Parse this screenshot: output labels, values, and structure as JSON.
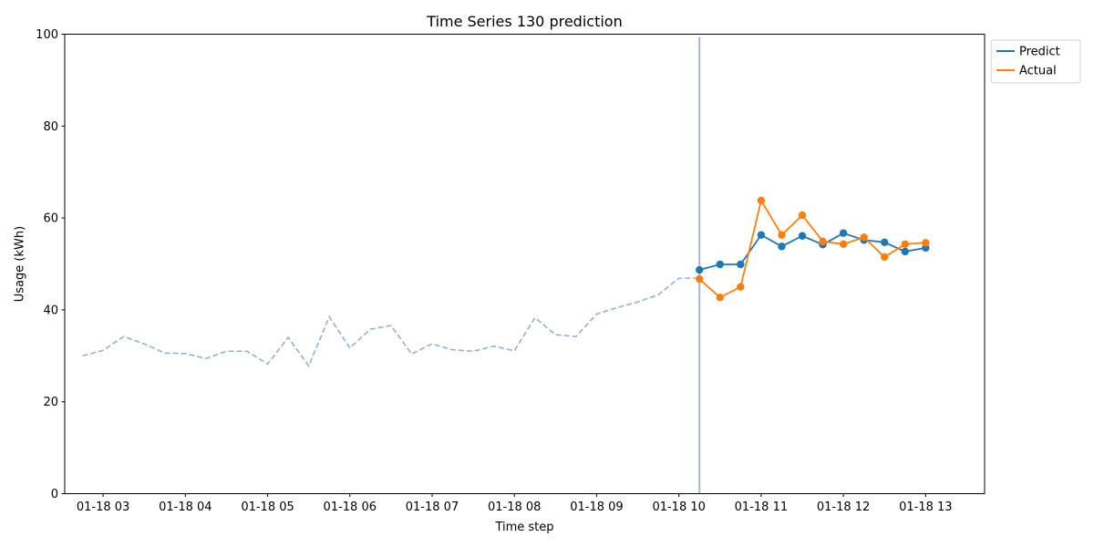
{
  "chart_data": {
    "type": "line",
    "title": "Time Series 130 prediction",
    "xlabel": "Time step",
    "ylabel": "Usage (kWh)",
    "ylim": [
      0,
      100
    ],
    "xlim": [
      "01-18 02:32",
      "01-18 13:43"
    ],
    "yticks": [
      0,
      20,
      40,
      60,
      80,
      100
    ],
    "xticks": [
      "01-18 03",
      "01-18 04",
      "01-18 05",
      "01-18 06",
      "01-18 07",
      "01-18 08",
      "01-18 09",
      "01-18 10",
      "01-18 11",
      "01-18 12",
      "01-18 13"
    ],
    "grid": false,
    "legend_position": "outside upper right",
    "colors": {
      "predict": "#1f77b4",
      "actual": "#ff7f0e",
      "history": "#9ab0c8",
      "divider": "#a4b4d4"
    },
    "divider_x": "01-18 10:15",
    "history": {
      "x": [
        "01-18 02:45",
        "01-18 03:00",
        "01-18 03:15",
        "01-18 03:30",
        "01-18 03:45",
        "01-18 04:00",
        "01-18 04:15",
        "01-18 04:30",
        "01-18 04:45",
        "01-18 05:00",
        "01-18 05:15",
        "01-18 05:30",
        "01-18 05:45",
        "01-18 06:00",
        "01-18 06:15",
        "01-18 06:30",
        "01-18 06:45",
        "01-18 07:00",
        "01-18 07:15",
        "01-18 07:30",
        "01-18 07:45",
        "01-18 08:00",
        "01-18 08:15",
        "01-18 08:30",
        "01-18 08:45",
        "01-18 09:00",
        "01-18 09:15",
        "01-18 09:30",
        "01-18 09:45",
        "01-18 10:00",
        "01-18 10:15"
      ],
      "y": [
        30.0,
        31.2,
        34.2,
        32.6,
        30.6,
        30.5,
        29.4,
        31.0,
        31.0,
        28.2,
        34.0,
        27.8,
        38.5,
        31.7,
        35.8,
        36.6,
        30.4,
        32.6,
        31.3,
        31.0,
        32.1,
        31.1,
        38.3,
        34.6,
        34.2,
        39.1,
        40.5,
        41.7,
        43.3,
        46.9,
        46.9
      ]
    },
    "series": [
      {
        "name": "Predict",
        "x": [
          "01-18 10:15",
          "01-18 10:30",
          "01-18 10:45",
          "01-18 11:00",
          "01-18 11:15",
          "01-18 11:30",
          "01-18 11:45",
          "01-18 12:00",
          "01-18 12:15",
          "01-18 12:30",
          "01-18 12:45",
          "01-18 13:00"
        ],
        "y": [
          48.7,
          49.9,
          49.9,
          56.3,
          53.8,
          56.1,
          54.2,
          56.7,
          55.2,
          54.7,
          52.7,
          53.5
        ]
      },
      {
        "name": "Actual",
        "x": [
          "01-18 10:15",
          "01-18 10:30",
          "01-18 10:45",
          "01-18 11:00",
          "01-18 11:15",
          "01-18 11:30",
          "01-18 11:45",
          "01-18 12:00",
          "01-18 12:15",
          "01-18 12:30",
          "01-18 12:45",
          "01-18 13:00"
        ],
        "y": [
          46.7,
          42.7,
          45.0,
          63.8,
          56.3,
          60.6,
          54.9,
          54.3,
          55.8,
          51.5,
          54.3,
          54.6
        ]
      }
    ]
  }
}
